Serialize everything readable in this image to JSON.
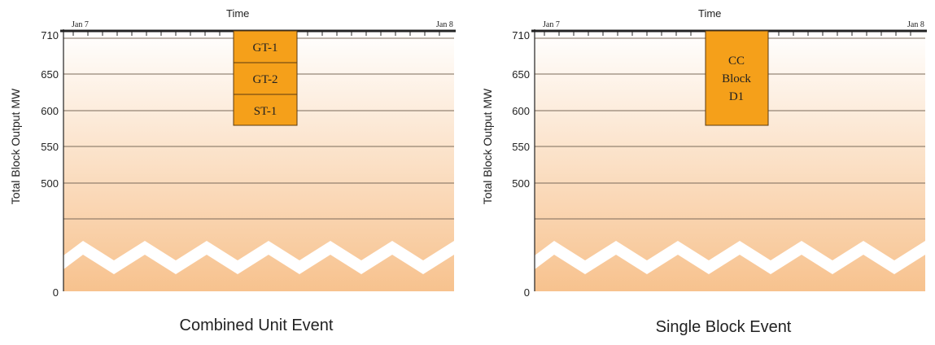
{
  "panels": [
    {
      "axis_title": "Time",
      "date_start": "Jan 7",
      "date_end": "Jan 8",
      "ylabel": "Total Block Output MW",
      "y_ticks": [
        "710",
        "650",
        "600",
        "550",
        "500",
        "0"
      ],
      "boxes": [
        "GT-1",
        "GT-2",
        "ST-1"
      ],
      "caption": "Combined Unit Event"
    },
    {
      "axis_title": "Time",
      "date_start": "Jan 7",
      "date_end": "Jan 8",
      "ylabel": "Total Block Output MW",
      "y_ticks": [
        "710",
        "650",
        "600",
        "550",
        "500",
        "0"
      ],
      "box_lines": [
        "CC",
        "Block",
        "D1"
      ],
      "caption": "Single Block Event"
    }
  ],
  "colors": {
    "event_fill": "#f5a01a",
    "event_stroke": "#5a3a10",
    "gradient_top": "#ffffff",
    "gradient_bottom": "#f7c28e"
  }
}
